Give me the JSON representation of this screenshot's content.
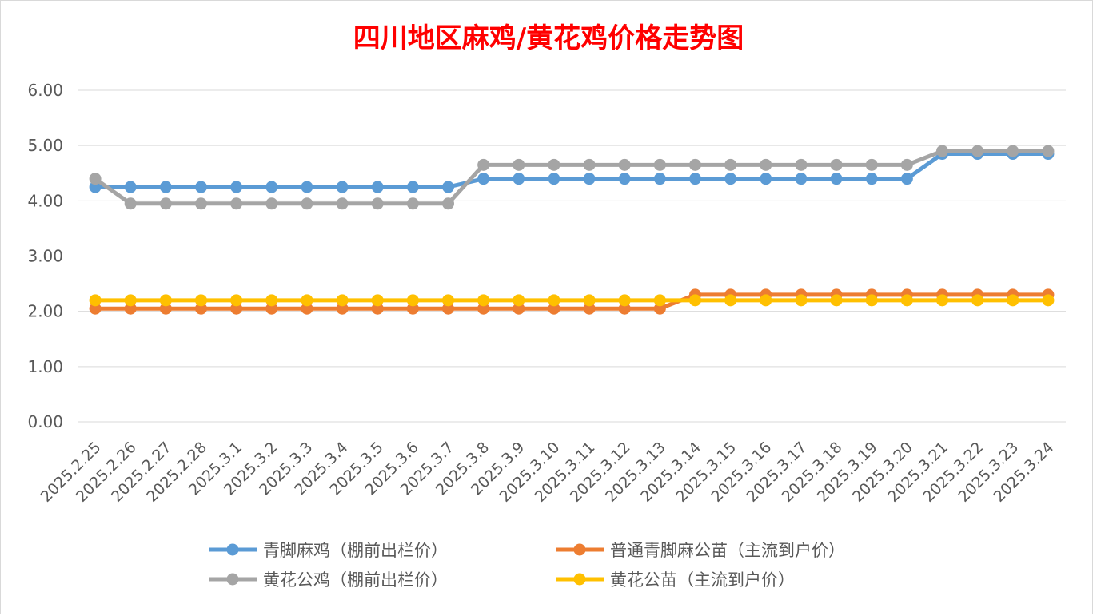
{
  "chart_data": {
    "type": "line",
    "title": "四川地区麻鸡/黄花鸡价格走势图",
    "xlabel": "",
    "ylabel": "",
    "ylim": [
      0,
      6
    ],
    "yticks": [
      "0.00",
      "1.00",
      "2.00",
      "3.00",
      "4.00",
      "5.00",
      "6.00"
    ],
    "grid": true,
    "legend_position": "bottom",
    "categories": [
      "2025.2.25",
      "2025.2.26",
      "2025.2.27",
      "2025.2.28",
      "2025.3.1",
      "2025.3.2",
      "2025.3.3",
      "2025.3.4",
      "2025.3.5",
      "2025.3.6",
      "2025.3.7",
      "2025.3.8",
      "2025.3.9",
      "2025.3.10",
      "2025.3.11",
      "2025.3.12",
      "2025.3.13",
      "2025.3.14",
      "2025.3.15",
      "2025.3.16",
      "2025.3.17",
      "2025.3.18",
      "2025.3.19",
      "2025.3.20",
      "2025.3.21",
      "2025.3.22",
      "2025.3.23",
      "2025.3.24"
    ],
    "series": [
      {
        "name": "青脚麻鸡（棚前出栏价）",
        "color": "#5b9bd5",
        "values": [
          4.25,
          4.25,
          4.25,
          4.25,
          4.25,
          4.25,
          4.25,
          4.25,
          4.25,
          4.25,
          4.25,
          4.4,
          4.4,
          4.4,
          4.4,
          4.4,
          4.4,
          4.4,
          4.4,
          4.4,
          4.4,
          4.4,
          4.4,
          4.4,
          4.85,
          4.85,
          4.85,
          4.85
        ]
      },
      {
        "name": "普通青脚麻公苗（主流到户价）",
        "color": "#ed7d31",
        "values": [
          2.05,
          2.05,
          2.05,
          2.05,
          2.05,
          2.05,
          2.05,
          2.05,
          2.05,
          2.05,
          2.05,
          2.05,
          2.05,
          2.05,
          2.05,
          2.05,
          2.05,
          2.3,
          2.3,
          2.3,
          2.3,
          2.3,
          2.3,
          2.3,
          2.3,
          2.3,
          2.3,
          2.3
        ]
      },
      {
        "name": "黄花公鸡（棚前出栏价）",
        "color": "#a5a5a5",
        "values": [
          4.4,
          3.95,
          3.95,
          3.95,
          3.95,
          3.95,
          3.95,
          3.95,
          3.95,
          3.95,
          3.95,
          4.65,
          4.65,
          4.65,
          4.65,
          4.65,
          4.65,
          4.65,
          4.65,
          4.65,
          4.65,
          4.65,
          4.65,
          4.65,
          4.9,
          4.9,
          4.9,
          4.9
        ]
      },
      {
        "name": "黄花公苗（主流到户价）",
        "color": "#ffc000",
        "values": [
          2.2,
          2.2,
          2.2,
          2.2,
          2.2,
          2.2,
          2.2,
          2.2,
          2.2,
          2.2,
          2.2,
          2.2,
          2.2,
          2.2,
          2.2,
          2.2,
          2.2,
          2.2,
          2.2,
          2.2,
          2.2,
          2.2,
          2.2,
          2.2,
          2.2,
          2.2,
          2.2,
          2.2
        ]
      }
    ]
  }
}
